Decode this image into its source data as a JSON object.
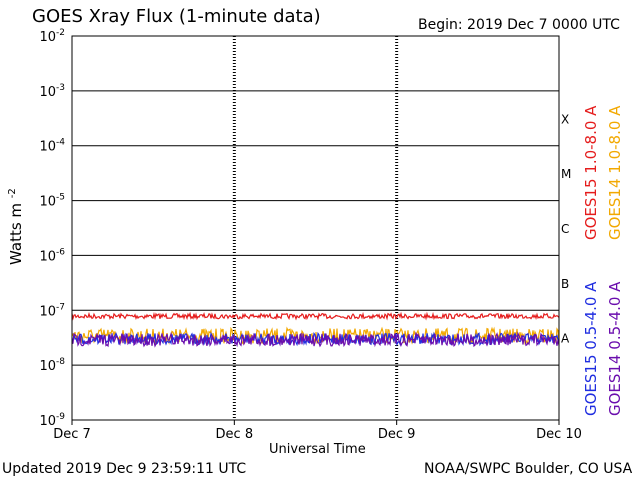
{
  "header": {
    "title": "GOES Xray Flux (1-minute data)",
    "begin": "Begin:  2019 Dec 7 0000 UTC"
  },
  "footer": {
    "updated": "Updated 2019 Dec  9 23:59:11 UTC",
    "credit": "NOAA/SWPC Boulder, CO USA"
  },
  "chart_data": {
    "type": "line",
    "title": "GOES Xray Flux (1-minute data)",
    "xlabel": "Universal Time",
    "ylabel": "Watts m",
    "ylabel_sup": "-2",
    "x_ticks": [
      "Dec 7",
      "Dec 8",
      "Dec 9",
      "Dec 10"
    ],
    "xlim": [
      "2019-12-07",
      "2019-12-10"
    ],
    "y_scale": "log",
    "ylim": [
      1e-09,
      0.01
    ],
    "y_ticks": [
      {
        "base": "10",
        "exp": "-9",
        "value": 1e-09
      },
      {
        "base": "10",
        "exp": "-8",
        "value": 1e-08
      },
      {
        "base": "10",
        "exp": "-7",
        "value": 1e-07
      },
      {
        "base": "10",
        "exp": "-6",
        "value": 1e-06
      },
      {
        "base": "10",
        "exp": "-5",
        "value": 1e-05
      },
      {
        "base": "10",
        "exp": "-4",
        "value": 0.0001
      },
      {
        "base": "10",
        "exp": "-3",
        "value": 0.001
      },
      {
        "base": "10",
        "exp": "-2",
        "value": 0.01
      }
    ],
    "flare_classes": [
      {
        "label": "A",
        "value": 1e-08
      },
      {
        "label": "B",
        "value": 1e-07
      },
      {
        "label": "C",
        "value": 1e-06
      },
      {
        "label": "M",
        "value": 1e-05
      },
      {
        "label": "X",
        "value": 0.0001
      }
    ],
    "grid": true,
    "legend_placement": "right",
    "series": [
      {
        "name": "GOES15 1.0-8.0 A",
        "color": "#e51c1c",
        "x": [
          "2019-12-07",
          "2019-12-10"
        ],
        "values": [
          7.8e-08,
          7.8e-08
        ],
        "noise": 0.02
      },
      {
        "name": "GOES14 1.0-8.0 A",
        "color": "#f2a800",
        "x": [
          "2019-12-07",
          "2019-12-10"
        ],
        "values": [
          3.4e-08,
          3.4e-08
        ],
        "noise": 0.06
      },
      {
        "name": "GOES15 0.5-4.0 A",
        "color": "#1f2de0",
        "x": [
          "2019-12-07",
          "2019-12-10"
        ],
        "values": [
          3e-08,
          3e-08
        ],
        "noise": 0.045
      },
      {
        "name": "GOES14 0.5-4.0 A",
        "color": "#6a0dad",
        "x": [
          "2019-12-07",
          "2019-12-10"
        ],
        "values": [
          2.9e-08,
          2.9e-08
        ],
        "noise": 0.05
      }
    ]
  }
}
